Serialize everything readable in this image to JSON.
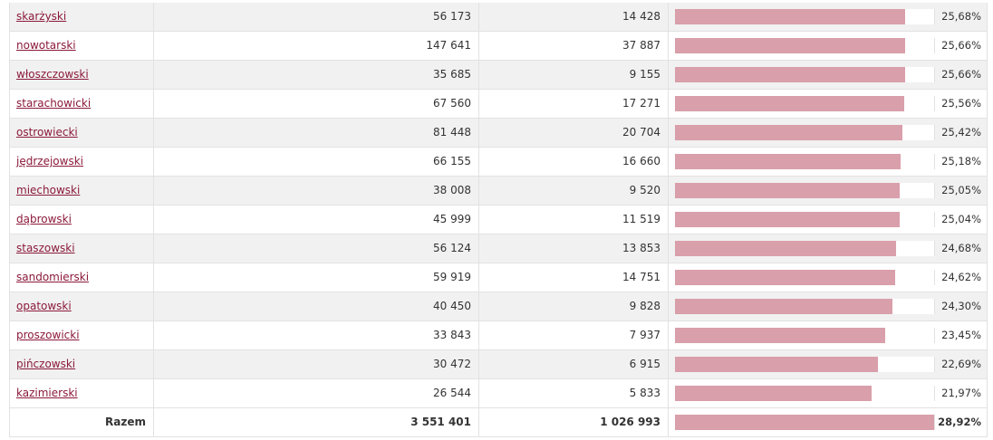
{
  "table": {
    "rows": [
      {
        "name": "skarżyski",
        "population": "56 173",
        "count": "14 428",
        "percent": {
          "value": 25.68,
          "label": "25,68%"
        }
      },
      {
        "name": "nowotarski",
        "population": "147 641",
        "count": "37 887",
        "percent": {
          "value": 25.66,
          "label": "25,66%"
        }
      },
      {
        "name": "włoszczowski",
        "population": "35 685",
        "count": "9 155",
        "percent": {
          "value": 25.66,
          "label": "25,66%"
        }
      },
      {
        "name": "starachowicki",
        "population": "67 560",
        "count": "17 271",
        "percent": {
          "value": 25.56,
          "label": "25,56%"
        }
      },
      {
        "name": "ostrowiecki",
        "population": "81 448",
        "count": "20 704",
        "percent": {
          "value": 25.42,
          "label": "25,42%"
        }
      },
      {
        "name": "jędrzejowski",
        "population": "66 155",
        "count": "16 660",
        "percent": {
          "value": 25.18,
          "label": "25,18%"
        }
      },
      {
        "name": "miechowski",
        "population": "38 008",
        "count": "9 520",
        "percent": {
          "value": 25.05,
          "label": "25,05%"
        }
      },
      {
        "name": "dąbrowski",
        "population": "45 999",
        "count": "11 519",
        "percent": {
          "value": 25.04,
          "label": "25,04%"
        }
      },
      {
        "name": "staszowski",
        "population": "56 124",
        "count": "13 853",
        "percent": {
          "value": 24.68,
          "label": "24,68%"
        }
      },
      {
        "name": "sandomierski",
        "population": "59 919",
        "count": "14 751",
        "percent": {
          "value": 24.62,
          "label": "24,62%"
        }
      },
      {
        "name": "opatowski",
        "population": "40 450",
        "count": "9 828",
        "percent": {
          "value": 24.3,
          "label": "24,30%"
        }
      },
      {
        "name": "proszowicki",
        "population": "33 843",
        "count": "7 937",
        "percent": {
          "value": 23.45,
          "label": "23,45%"
        }
      },
      {
        "name": "pińczowski",
        "population": "30 472",
        "count": "6 915",
        "percent": {
          "value": 22.69,
          "label": "22,69%"
        }
      },
      {
        "name": "kazimierski",
        "population": "26 544",
        "count": "5 833",
        "percent": {
          "value": 21.97,
          "label": "21,97%"
        }
      }
    ],
    "total": {
      "name": "Razem",
      "population": "3 551 401",
      "count": "1 026 993",
      "percent": {
        "value": 28.92,
        "label": "28,92%"
      }
    }
  }
}
